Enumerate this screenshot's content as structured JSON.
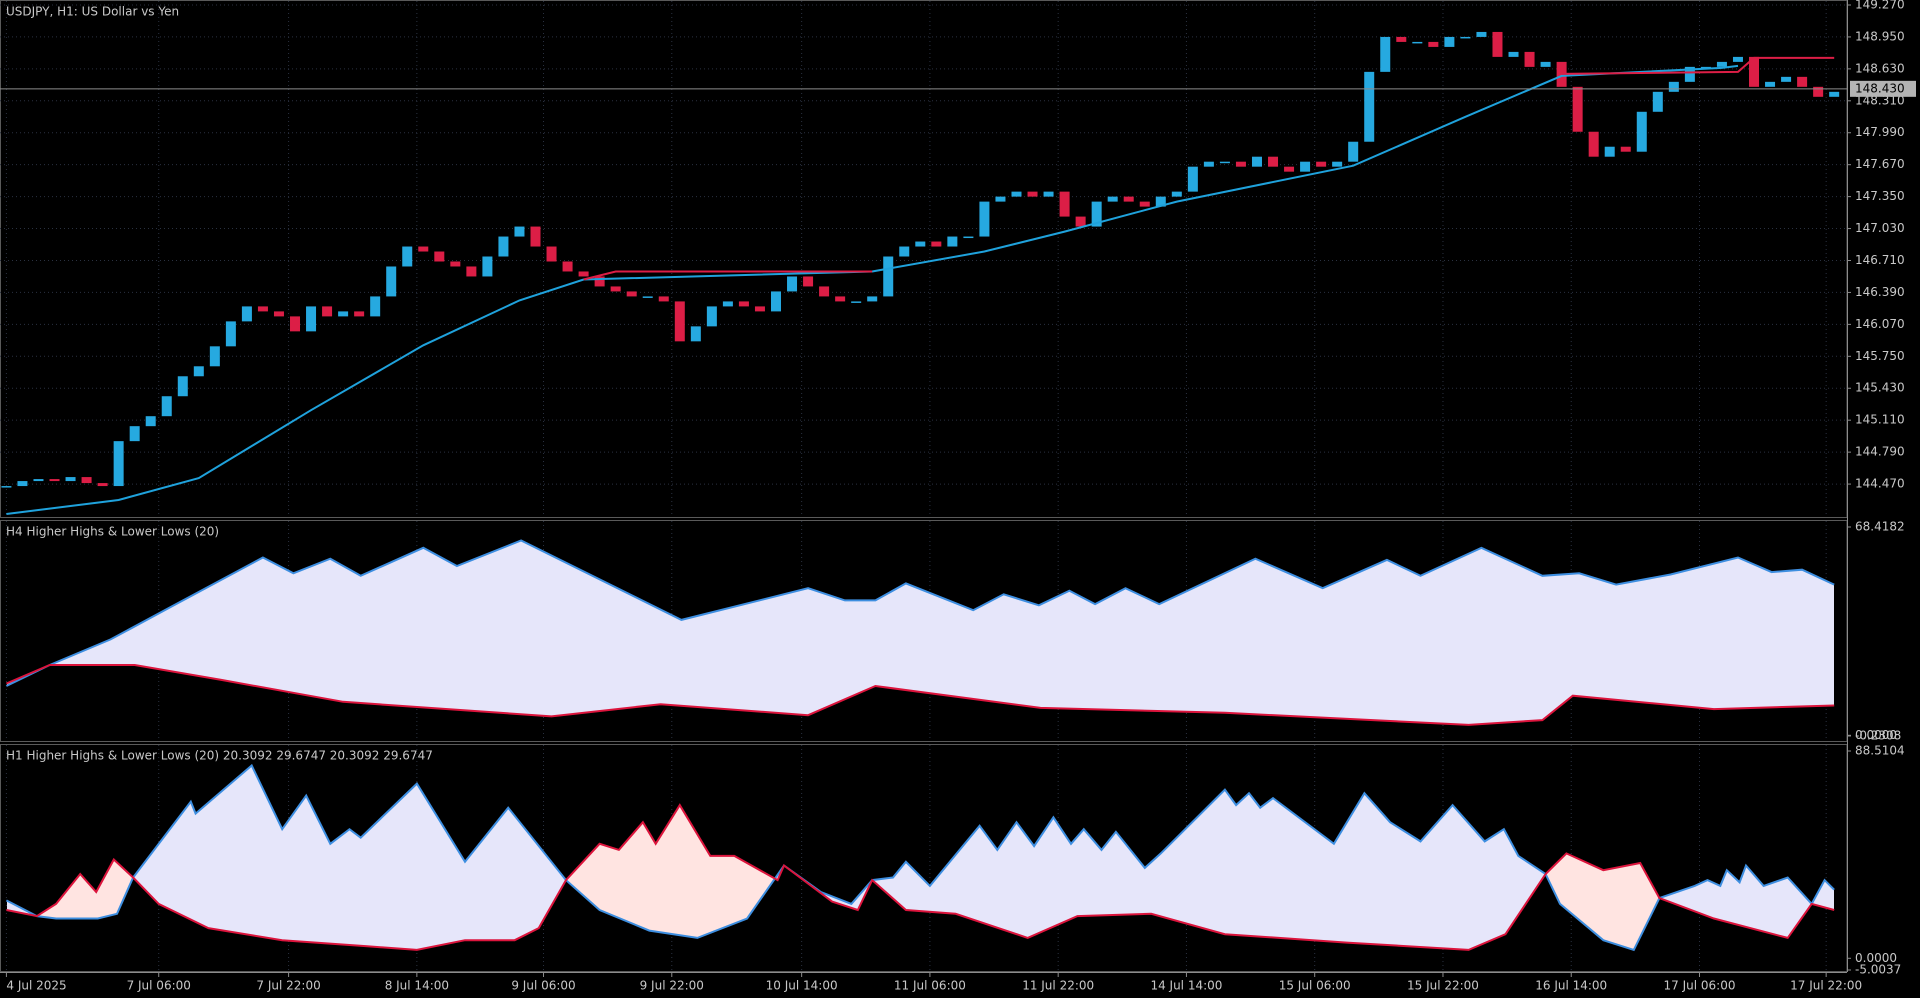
{
  "chart_data": [
    {
      "type": "candlestick",
      "title": "USDJPY, H1:  US Dollar vs Yen",
      "close": [
        144.45,
        144.5,
        144.52,
        144.5,
        144.54,
        144.48,
        144.45,
        144.9,
        145.05,
        145.15,
        145.35,
        145.55,
        145.65,
        145.85,
        146.1,
        146.25,
        146.2,
        146.15,
        146.0,
        146.25,
        146.15,
        146.2,
        146.15,
        146.35,
        146.65,
        146.85,
        146.8,
        146.7,
        146.65,
        146.55,
        146.75,
        146.95,
        147.05,
        146.85,
        146.7,
        146.6,
        146.55,
        146.45,
        146.4,
        146.35,
        146.35,
        146.3,
        145.9,
        146.05,
        146.25,
        146.3,
        146.25,
        146.2,
        146.4,
        146.55,
        146.45,
        146.35,
        146.3,
        146.3,
        146.35,
        146.75,
        146.85,
        146.9,
        146.85,
        146.95,
        146.95,
        147.3,
        147.35,
        147.4,
        147.35,
        147.4,
        147.15,
        147.05,
        147.3,
        147.35,
        147.3,
        147.25,
        147.35,
        147.4,
        147.65,
        147.7,
        147.7,
        147.65,
        147.75,
        147.65,
        147.6,
        147.7,
        147.65,
        147.7,
        147.9,
        148.6,
        148.95,
        148.9,
        148.9,
        148.85,
        148.95,
        148.95,
        149.0,
        148.75,
        148.8,
        148.65,
        148.7,
        148.45,
        148.0,
        147.75,
        147.85,
        147.8,
        148.2,
        148.4,
        148.5,
        148.65,
        148.65,
        148.7,
        148.75,
        148.45,
        148.5,
        148.55,
        148.45,
        148.35,
        148.4
      ],
      "up_color": "#26a9e0",
      "down_color": "#dc1e46",
      "lines": [
        {
          "color": "#1fa2dc",
          "x": [
            0,
            7,
            12,
            19,
            26,
            32,
            36,
            54,
            61,
            66,
            73,
            84,
            91,
            97,
            107,
            108
          ],
          "values": [
            144.17,
            144.31,
            144.53,
            145.21,
            145.86,
            146.31,
            146.52,
            146.6,
            146.8,
            147.0,
            147.3,
            147.66,
            148.15,
            148.56,
            148.64,
            148.66
          ]
        },
        {
          "color": "#dc1e46",
          "x": [
            36,
            38,
            54,
            55,
            97,
            108,
            109,
            114
          ],
          "values": [
            146.52,
            146.6,
            146.6,
            null,
            148.58,
            148.6,
            148.74,
            148.74
          ]
        }
      ],
      "last_price": {
        "value": 148.43,
        "label": "148.430"
      },
      "ylim": [
        144.14,
        149.32
      ],
      "yticks": [
        {
          "value": 144.47,
          "label": "144.470"
        },
        {
          "value": 144.79,
          "label": "144.790"
        },
        {
          "value": 145.11,
          "label": "145.110"
        },
        {
          "value": 145.43,
          "label": "145.430"
        },
        {
          "value": 145.75,
          "label": "145.750"
        },
        {
          "value": 146.07,
          "label": "146.070"
        },
        {
          "value": 146.39,
          "label": "146.390"
        },
        {
          "value": 146.71,
          "label": "146.710"
        },
        {
          "value": 147.03,
          "label": "147.030"
        },
        {
          "value": 147.35,
          "label": "147.350"
        },
        {
          "value": 147.67,
          "label": "147.670"
        },
        {
          "value": 147.99,
          "label": "147.990"
        },
        {
          "value": 148.31,
          "label": "148.310"
        },
        {
          "value": 148.63,
          "label": "148.630"
        },
        {
          "value": 148.95,
          "label": "148.950"
        },
        {
          "value": 149.27,
          "label": "149.270"
        }
      ],
      "grid": true
    },
    {
      "type": "band",
      "title": "H4 Higher Highs & Lower Lows (20)",
      "series": [
        {
          "color": "#3d8ee0",
          "x": [
            0,
            2.7,
            6.5,
            10.3,
            16.0,
            17.9,
            20.2,
            22.1,
            26.0,
            28.1,
            32.1,
            42.1,
            50.0,
            52.3,
            54.2,
            56.1,
            60.3,
            62.2,
            64.4,
            66.3,
            67.9,
            69.8,
            71.9,
            77.9,
            82.1,
            86.1,
            88.2,
            92.0,
            95.8,
            98.1,
            100.4,
            103.8,
            108.0,
            110.1,
            112.0,
            114
          ],
          "values": [
            16.2,
            23.1,
            31.5,
            42.3,
            58.4,
            53.2,
            58.0,
            52.4,
            61.6,
            55.6,
            64.0,
            37.9,
            48.3,
            44.3,
            44.3,
            49.9,
            41.1,
            46.3,
            42.7,
            47.5,
            43.1,
            48.3,
            43.1,
            58.0,
            48.3,
            57.6,
            52.4,
            61.6,
            52.4,
            53.2,
            49.5,
            52.8,
            58.4,
            53.6,
            54.4,
            49.5
          ]
        },
        {
          "color": "#dc143c",
          "x": [
            0,
            2.7,
            8.0,
            13.4,
            21.0,
            34.0,
            40.8,
            50.0,
            54.2,
            64.5,
            76.0,
            91.2,
            95.8,
            97.7,
            106.5,
            114
          ],
          "values": [
            17.0,
            23.1,
            23.1,
            18.2,
            11.0,
            6.2,
            10.2,
            6.6,
            16.2,
            9.0,
            7.4,
            3.4,
            5.0,
            13.0,
            8.6,
            9.8
          ]
        }
      ],
      "fill_colors": [
        "#e6e6fa",
        "#ffe4e1"
      ],
      "ylim": [
        -0.2308,
        68.4182
      ],
      "yticks": [
        68.4182,
        {
          "value": 0,
          "label": "0.0000"
        },
        -0.2308
      ],
      "grid": true
    },
    {
      "type": "band",
      "title": "H1 Higher Highs & Lower Lows (20) 20.3092 29.6747 20.3092 29.6747",
      "series": [
        {
          "color": "#3d8ee0",
          "x": [
            0,
            1.9,
            3.1,
            5.7,
            6.9,
            7.9,
            11.5,
            11.8,
            15.3,
            17.2,
            18.7,
            20.2,
            21.4,
            22.1,
            25.6,
            28.6,
            31.3,
            34.9,
            37.0,
            40.1,
            43.1,
            46.2,
            48.5,
            50.8,
            52.7,
            54.0,
            55.3,
            56.1,
            57.6,
            60.7,
            61.8,
            63.0,
            64.1,
            65.3,
            66.4,
            67.2,
            68.3,
            69.2,
            71.0,
            72.0,
            76.0,
            76.7,
            77.5,
            78.2,
            79.0,
            82.8,
            84.7,
            86.3,
            88.2,
            90.2,
            92.2,
            93.4,
            94.3,
            96.0,
            96.9,
            99.6,
            101.5,
            103.1,
            105.3,
            106.1,
            106.9,
            107.3,
            108.1,
            108.5,
            109.6,
            111.1,
            112.6,
            113.4,
            114.0
          ],
          "values": [
            24.7,
            18.0,
            17.0,
            17.0,
            19.0,
            34.5,
            66.9,
            61.8,
            82.3,
            55.1,
            69.5,
            48.9,
            55.1,
            51.5,
            74.6,
            41.2,
            64.3,
            33.4,
            20.6,
            11.8,
            8.7,
            17.0,
            39.6,
            28.3,
            23.2,
            33.4,
            34.5,
            41.2,
            30.9,
            56.6,
            46.3,
            58.1,
            47.9,
            60.2,
            48.9,
            55.1,
            46.3,
            54.0,
            38.6,
            44.8,
            72.0,
            65.4,
            70.5,
            64.3,
            68.4,
            48.9,
            70.5,
            58.1,
            49.9,
            65.4,
            49.9,
            55.1,
            43.7,
            36.0,
            23.2,
            7.7,
            3.6,
            25.7,
            30.9,
            33.4,
            30.9,
            37.6,
            32.4,
            39.6,
            30.9,
            34.5,
            23.2,
            33.4,
            29.3
          ]
        },
        {
          "color": "#dc143c",
          "x": [
            0,
            1.9,
            3.1,
            4.6,
            5.6,
            6.7,
            7.9,
            9.5,
            12.6,
            17.2,
            22.5,
            25.6,
            28.6,
            31.7,
            33.2,
            34.9,
            37.0,
            38.2,
            39.7,
            40.5,
            42.0,
            43.9,
            45.4,
            48.1,
            48.5,
            51.5,
            53.1,
            54.0,
            56.1,
            59.2,
            63.7,
            66.8,
            71.4,
            76.0,
            83.6,
            91.2,
            93.5,
            96.0,
            97.3,
            99.6,
            101.9,
            103.1,
            106.5,
            111.1,
            112.6,
            114.0
          ],
          "values": [
            20.6,
            18.0,
            23.2,
            36.0,
            28.3,
            42.2,
            34.5,
            23.2,
            12.9,
            7.7,
            5.1,
            3.6,
            7.7,
            7.7,
            12.9,
            33.4,
            48.9,
            46.3,
            58.1,
            48.9,
            65.4,
            43.7,
            43.7,
            33.4,
            39.6,
            24.2,
            20.6,
            33.4,
            20.6,
            19.0,
            8.7,
            18.0,
            19.0,
            10.3,
            6.7,
            3.6,
            10.3,
            36.0,
            44.8,
            37.6,
            40.7,
            25.7,
            17.0,
            8.7,
            23.2,
            20.6
          ]
        }
      ],
      "fill_colors": [
        "#e6e6fa",
        "#ffe4e1"
      ],
      "ylim": [
        -5.0037,
        88.5104
      ],
      "yticks": [
        88.5104,
        {
          "value": 0,
          "label": "0.0000"
        },
        -5.0037
      ],
      "xlim": [
        -0.4,
        114.8
      ],
      "xticks": [
        {
          "value": 0,
          "label": "4 Jul 2025"
        },
        {
          "value": 9.5,
          "label": "7 Jul 06:00"
        },
        {
          "value": 17.6,
          "label": "7 Jul 22:00"
        },
        {
          "value": 25.6,
          "label": "8 Jul 14:00"
        },
        {
          "value": 33.5,
          "label": "9 Jul 06:00"
        },
        {
          "value": 41.5,
          "label": "9 Jul 22:00"
        },
        {
          "value": 49.6,
          "label": "10 Jul 14:00"
        },
        {
          "value": 57.6,
          "label": "11 Jul 06:00"
        },
        {
          "value": 65.6,
          "label": "11 Jul 22:00"
        },
        {
          "value": 73.6,
          "label": "14 Jul 14:00"
        },
        {
          "value": 81.6,
          "label": "15 Jul 06:00"
        },
        {
          "value": 89.6,
          "label": "15 Jul 22:00"
        },
        {
          "value": 97.6,
          "label": "16 Jul 14:00"
        },
        {
          "value": 105.6,
          "label": "17 Jul 06:00"
        },
        {
          "value": 113.5,
          "label": "17 Jul 22:00"
        }
      ],
      "grid": true
    }
  ]
}
